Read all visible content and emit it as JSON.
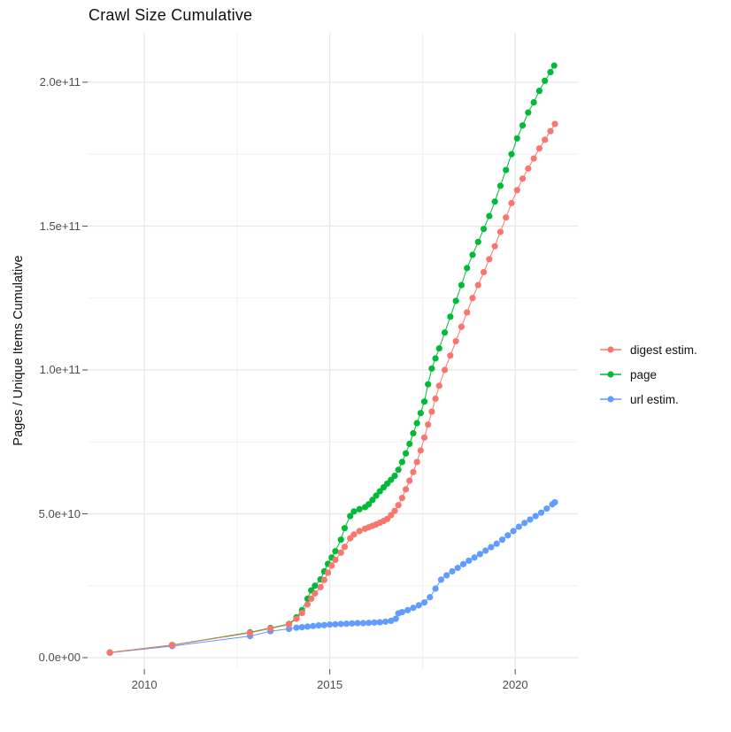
{
  "chart_data": {
    "type": "line",
    "title": "Crawl Size Cumulative",
    "xlabel": "",
    "ylabel": "Pages / Unique Items Cumulative",
    "legend_position": "right",
    "grid": true,
    "xlim": [
      2008.47,
      2021.69
    ],
    "ylim": [
      -4000000000.0,
      217200000000.0
    ],
    "x_axis": {
      "ticks": [
        {
          "value": 2010,
          "label": "2010"
        },
        {
          "value": 2015,
          "label": "2015"
        },
        {
          "value": 2020,
          "label": "2020"
        }
      ],
      "minor": [
        2012.5,
        2017.5
      ]
    },
    "y_axis": {
      "ticks": [
        {
          "value": 0,
          "label": "0.0e+00"
        },
        {
          "value": 50000000000.0,
          "label": "5.0e+10"
        },
        {
          "value": 100000000000.0,
          "label": "1.0e+11"
        },
        {
          "value": 150000000000.0,
          "label": "1.5e+11"
        },
        {
          "value": 200000000000.0,
          "label": "2.0e+11"
        }
      ],
      "minor": [
        25000000000.0,
        75000000000.0,
        125000000000.0,
        175000000000.0
      ]
    },
    "series": [
      {
        "name": "url estim.",
        "color": "#619CFF",
        "points": [
          [
            2009.07,
            1700000000.0
          ],
          [
            2010.75,
            4000000000.0
          ],
          [
            2012.85,
            7500000000.0
          ],
          [
            2013.4,
            9200000000.0
          ],
          [
            2013.9,
            10000000000.0
          ],
          [
            2014.1,
            10400000000.0
          ],
          [
            2014.25,
            10600000000.0
          ],
          [
            2014.4,
            10800000000.0
          ],
          [
            2014.55,
            11000000000.0
          ],
          [
            2014.7,
            11200000000.0
          ],
          [
            2014.85,
            11300000000.0
          ],
          [
            2015.0,
            11500000000.0
          ],
          [
            2015.15,
            11600000000.0
          ],
          [
            2015.3,
            11700000000.0
          ],
          [
            2015.45,
            11800000000.0
          ],
          [
            2015.6,
            11900000000.0
          ],
          [
            2015.75,
            12000000000.0
          ],
          [
            2015.9,
            12000000000.0
          ],
          [
            2016.05,
            12100000000.0
          ],
          [
            2016.2,
            12200000000.0
          ],
          [
            2016.35,
            12300000000.0
          ],
          [
            2016.5,
            12500000000.0
          ],
          [
            2016.65,
            12800000000.0
          ],
          [
            2016.78,
            13500000000.0
          ],
          [
            2016.85,
            15400000000.0
          ],
          [
            2016.95,
            15800000000.0
          ],
          [
            2017.1,
            16500000000.0
          ],
          [
            2017.25,
            17300000000.0
          ],
          [
            2017.4,
            18200000000.0
          ],
          [
            2017.55,
            19200000000.0
          ],
          [
            2017.7,
            21000000000.0
          ],
          [
            2017.85,
            24000000000.0
          ],
          [
            2018.0,
            27100000000.0
          ],
          [
            2018.15,
            28600000000.0
          ],
          [
            2018.3,
            30000000000.0
          ],
          [
            2018.45,
            31200000000.0
          ],
          [
            2018.6,
            32500000000.0
          ],
          [
            2018.75,
            33700000000.0
          ],
          [
            2018.9,
            34800000000.0
          ],
          [
            2019.05,
            36000000000.0
          ],
          [
            2019.2,
            37200000000.0
          ],
          [
            2019.35,
            38400000000.0
          ],
          [
            2019.5,
            39600000000.0
          ],
          [
            2019.65,
            41000000000.0
          ],
          [
            2019.8,
            42500000000.0
          ],
          [
            2019.95,
            44000000000.0
          ],
          [
            2020.1,
            45500000000.0
          ],
          [
            2020.25,
            46800000000.0
          ],
          [
            2020.4,
            48000000000.0
          ],
          [
            2020.55,
            49200000000.0
          ],
          [
            2020.7,
            50400000000.0
          ],
          [
            2020.85,
            51800000000.0
          ],
          [
            2021.0,
            53300000000.0
          ],
          [
            2021.07,
            54000000000.0
          ]
        ]
      },
      {
        "name": "page",
        "color": "#00BA38",
        "points": [
          [
            2009.07,
            1800000000.0
          ],
          [
            2010.75,
            4400000000.0
          ],
          [
            2012.85,
            8800000000.0
          ],
          [
            2013.4,
            10300000000.0
          ],
          [
            2013.9,
            11700000000.0
          ],
          [
            2014.1,
            14000000000.0
          ],
          [
            2014.25,
            16500000000.0
          ],
          [
            2014.4,
            20500000000.0
          ],
          [
            2014.5,
            23400000000.0
          ],
          [
            2014.6,
            25000000000.0
          ],
          [
            2014.75,
            27200000000.0
          ],
          [
            2014.85,
            30000000000.0
          ],
          [
            2014.95,
            32600000000.0
          ],
          [
            2015.05,
            34800000000.0
          ],
          [
            2015.15,
            37000000000.0
          ],
          [
            2015.3,
            41000000000.0
          ],
          [
            2015.4,
            45000000000.0
          ],
          [
            2015.55,
            49200000000.0
          ],
          [
            2015.65,
            50800000000.0
          ],
          [
            2015.8,
            51600000000.0
          ],
          [
            2015.95,
            52300000000.0
          ],
          [
            2016.05,
            53300000000.0
          ],
          [
            2016.15,
            54800000000.0
          ],
          [
            2016.25,
            56300000000.0
          ],
          [
            2016.35,
            57800000000.0
          ],
          [
            2016.45,
            59200000000.0
          ],
          [
            2016.55,
            60500000000.0
          ],
          [
            2016.65,
            61800000000.0
          ],
          [
            2016.75,
            63200000000.0
          ],
          [
            2016.85,
            65300000000.0
          ],
          [
            2016.95,
            68000000000.0
          ],
          [
            2017.05,
            71000000000.0
          ],
          [
            2017.15,
            74300000000.0
          ],
          [
            2017.25,
            78000000000.0
          ],
          [
            2017.35,
            81500000000.0
          ],
          [
            2017.45,
            85000000000.0
          ],
          [
            2017.55,
            89000000000.0
          ],
          [
            2017.65,
            95000000000.0
          ],
          [
            2017.75,
            100500000000.0
          ],
          [
            2017.85,
            104000000000.0
          ],
          [
            2017.95,
            107500000000.0
          ],
          [
            2018.1,
            113000000000.0
          ],
          [
            2018.25,
            118500000000.0
          ],
          [
            2018.4,
            124000000000.0
          ],
          [
            2018.55,
            129500000000.0
          ],
          [
            2018.7,
            135400000000.0
          ],
          [
            2018.85,
            140000000000.0
          ],
          [
            2019.0,
            144500000000.0
          ],
          [
            2019.15,
            149000000000.0
          ],
          [
            2019.3,
            153500000000.0
          ],
          [
            2019.45,
            158500000000.0
          ],
          [
            2019.6,
            164000000000.0
          ],
          [
            2019.75,
            169500000000.0
          ],
          [
            2019.9,
            175000000000.0
          ],
          [
            2020.05,
            180500000000.0
          ],
          [
            2020.2,
            185000000000.0
          ],
          [
            2020.35,
            189500000000.0
          ],
          [
            2020.5,
            193000000000.0
          ],
          [
            2020.65,
            197000000000.0
          ],
          [
            2020.8,
            200500000000.0
          ],
          [
            2020.95,
            203500000000.0
          ],
          [
            2021.05,
            205800000000.0
          ]
        ]
      },
      {
        "name": "digest estim.",
        "color": "#F8766D",
        "points": [
          [
            2009.07,
            1800000000.0
          ],
          [
            2010.75,
            4300000000.0
          ],
          [
            2012.85,
            8600000000.0
          ],
          [
            2013.4,
            10100000000.0
          ],
          [
            2013.9,
            11500000000.0
          ],
          [
            2014.1,
            13500000000.0
          ],
          [
            2014.25,
            15500000000.0
          ],
          [
            2014.4,
            18500000000.0
          ],
          [
            2014.5,
            20500000000.0
          ],
          [
            2014.6,
            22300000000.0
          ],
          [
            2014.75,
            24500000000.0
          ],
          [
            2014.85,
            27000000000.0
          ],
          [
            2014.95,
            29500000000.0
          ],
          [
            2015.05,
            32000000000.0
          ],
          [
            2015.15,
            34000000000.0
          ],
          [
            2015.3,
            36500000000.0
          ],
          [
            2015.4,
            38500000000.0
          ],
          [
            2015.55,
            41500000000.0
          ],
          [
            2015.65,
            42800000000.0
          ],
          [
            2015.8,
            44000000000.0
          ],
          [
            2015.95,
            44800000000.0
          ],
          [
            2016.05,
            45300000000.0
          ],
          [
            2016.15,
            45800000000.0
          ],
          [
            2016.25,
            46300000000.0
          ],
          [
            2016.35,
            46900000000.0
          ],
          [
            2016.45,
            47500000000.0
          ],
          [
            2016.55,
            48200000000.0
          ],
          [
            2016.65,
            49500000000.0
          ],
          [
            2016.75,
            51000000000.0
          ],
          [
            2016.85,
            53000000000.0
          ],
          [
            2016.95,
            55500000000.0
          ],
          [
            2017.05,
            58500000000.0
          ],
          [
            2017.15,
            61500000000.0
          ],
          [
            2017.25,
            64500000000.0
          ],
          [
            2017.35,
            68000000000.0
          ],
          [
            2017.45,
            72000000000.0
          ],
          [
            2017.55,
            76500000000.0
          ],
          [
            2017.65,
            81000000000.0
          ],
          [
            2017.75,
            85500000000.0
          ],
          [
            2017.85,
            90000000000.0
          ],
          [
            2017.95,
            94500000000.0
          ],
          [
            2018.1,
            100000000000.0
          ],
          [
            2018.25,
            105000000000.0
          ],
          [
            2018.4,
            110000000000.0
          ],
          [
            2018.55,
            115000000000.0
          ],
          [
            2018.7,
            120000000000.0
          ],
          [
            2018.85,
            125000000000.0
          ],
          [
            2019.0,
            129500000000.0
          ],
          [
            2019.15,
            134000000000.0
          ],
          [
            2019.3,
            138500000000.0
          ],
          [
            2019.45,
            143000000000.0
          ],
          [
            2019.6,
            148000000000.0
          ],
          [
            2019.75,
            153000000000.0
          ],
          [
            2019.9,
            158000000000.0
          ],
          [
            2020.05,
            162500000000.0
          ],
          [
            2020.2,
            166500000000.0
          ],
          [
            2020.35,
            170000000000.0
          ],
          [
            2020.5,
            173500000000.0
          ],
          [
            2020.65,
            177000000000.0
          ],
          [
            2020.8,
            180000000000.0
          ],
          [
            2020.95,
            183000000000.0
          ],
          [
            2021.07,
            185500000000.0
          ]
        ]
      }
    ],
    "legend_order": [
      "digest estim.",
      "page",
      "url estim."
    ],
    "style": {
      "major_grid_color": "#E7E7E7",
      "minor_grid_color": "#F1F1F1",
      "tick_color": "#4d4d4d",
      "point_radius": 3.6
    }
  }
}
